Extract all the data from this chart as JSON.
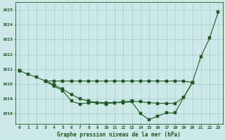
{
  "title": "Graphe pression niveau de la mer (hPa)",
  "bg_color": "#cce8e8",
  "grid_color": "#aacccc",
  "line_color": "#1a5c1a",
  "x_labels": [
    "0",
    "1",
    "2",
    "3",
    "4",
    "5",
    "6",
    "7",
    "8",
    "9",
    "10",
    "11",
    "12",
    "13",
    "14",
    "15",
    "16",
    "17",
    "18",
    "19",
    "20",
    "21",
    "22",
    "23"
  ],
  "ylim": [
    1017.3,
    1025.5
  ],
  "yticks": [
    1018,
    1019,
    1020,
    1021,
    1022,
    1023,
    1024,
    1025
  ],
  "line1": [
    1020.9,
    1020.65,
    1020.45,
    1020.2,
    1020.2,
    1020.2,
    1020.2,
    1020.2,
    1020.2,
    1020.2,
    1020.2,
    1020.2,
    1020.2,
    1020.2,
    1020.2,
    1020.2,
    1020.2,
    1020.2,
    1020.2,
    1020.2,
    1020.1,
    null,
    null,
    null
  ],
  "line2": [
    1020.9,
    null,
    null,
    1020.2,
    1019.85,
    1019.55,
    1018.85,
    1018.65,
    1018.75,
    1018.75,
    1018.65,
    1018.75,
    1018.75,
    1018.8,
    1018.0,
    1017.6,
    1017.85,
    1018.05,
    1018.05,
    1019.1,
    1020.1,
    1021.85,
    1023.1,
    1024.85
  ],
  "line3": [
    1020.9,
    null,
    null,
    1020.2,
    1019.95,
    1019.65,
    1019.3,
    1019.0,
    1018.85,
    1018.75,
    1018.75,
    1018.75,
    1018.8,
    1018.85,
    1018.8,
    1018.75,
    1018.7,
    1018.7,
    1018.7,
    1019.1,
    1020.1,
    null,
    null,
    null
  ]
}
